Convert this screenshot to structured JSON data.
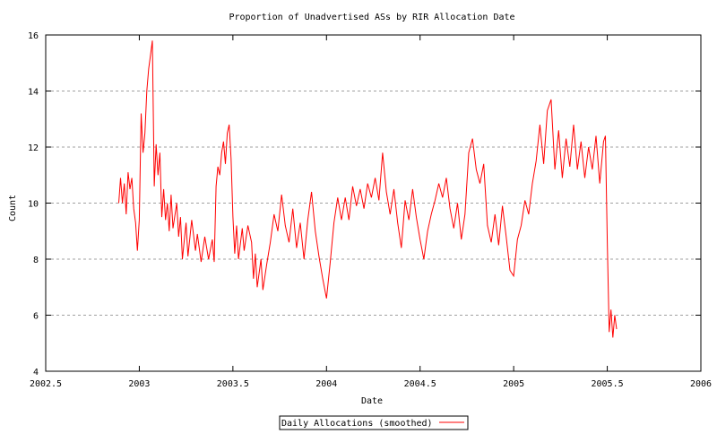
{
  "chart_data": {
    "type": "line",
    "title": "Proportion of Unadvertised ASs by RIR Allocation Date",
    "xlabel": "Date",
    "ylabel": "Count",
    "xlim": [
      2002.5,
      2006
    ],
    "ylim": [
      4,
      16
    ],
    "x_ticks": [
      "2002.5",
      "2003",
      "2003.5",
      "2004",
      "2004.5",
      "2005",
      "2005.5",
      "2006"
    ],
    "y_ticks": [
      "4",
      "6",
      "8",
      "10",
      "12",
      "14",
      "16"
    ],
    "grid": "horizontal dotted",
    "legend_position": "bottom-center",
    "series": [
      {
        "name": "Daily Allocations (smoothed)",
        "color": "#ff0000",
        "points": [
          [
            2002.89,
            10.0
          ],
          [
            2002.9,
            10.9
          ],
          [
            2002.91,
            10.0
          ],
          [
            2002.92,
            10.7
          ],
          [
            2002.93,
            9.6
          ],
          [
            2002.94,
            11.1
          ],
          [
            2002.95,
            10.5
          ],
          [
            2002.96,
            10.9
          ],
          [
            2002.97,
            9.8
          ],
          [
            2002.98,
            9.3
          ],
          [
            2002.99,
            8.3
          ],
          [
            2003.0,
            9.4
          ],
          [
            2003.01,
            13.2
          ],
          [
            2003.02,
            11.8
          ],
          [
            2003.03,
            12.5
          ],
          [
            2003.04,
            14.0
          ],
          [
            2003.05,
            14.8
          ],
          [
            2003.06,
            15.3
          ],
          [
            2003.07,
            15.8
          ],
          [
            2003.08,
            10.6
          ],
          [
            2003.09,
            12.1
          ],
          [
            2003.1,
            11.0
          ],
          [
            2003.11,
            11.8
          ],
          [
            2003.12,
            9.5
          ],
          [
            2003.13,
            10.5
          ],
          [
            2003.14,
            9.4
          ],
          [
            2003.15,
            10.0
          ],
          [
            2003.16,
            9.0
          ],
          [
            2003.17,
            10.3
          ],
          [
            2003.18,
            9.1
          ],
          [
            2003.2,
            10.0
          ],
          [
            2003.21,
            8.8
          ],
          [
            2003.22,
            9.5
          ],
          [
            2003.23,
            8.0
          ],
          [
            2003.25,
            9.3
          ],
          [
            2003.26,
            8.1
          ],
          [
            2003.28,
            9.4
          ],
          [
            2003.3,
            8.3
          ],
          [
            2003.31,
            8.9
          ],
          [
            2003.33,
            7.9
          ],
          [
            2003.35,
            8.8
          ],
          [
            2003.37,
            8.0
          ],
          [
            2003.39,
            8.7
          ],
          [
            2003.4,
            7.9
          ],
          [
            2003.41,
            10.6
          ],
          [
            2003.42,
            11.3
          ],
          [
            2003.43,
            11.0
          ],
          [
            2003.44,
            11.8
          ],
          [
            2003.45,
            12.2
          ],
          [
            2003.46,
            11.4
          ],
          [
            2003.47,
            12.5
          ],
          [
            2003.48,
            12.8
          ],
          [
            2003.49,
            11.6
          ],
          [
            2003.5,
            9.5
          ],
          [
            2003.51,
            8.2
          ],
          [
            2003.52,
            9.2
          ],
          [
            2003.53,
            8.0
          ],
          [
            2003.55,
            9.1
          ],
          [
            2003.56,
            8.3
          ],
          [
            2003.58,
            9.2
          ],
          [
            2003.6,
            8.6
          ],
          [
            2003.61,
            7.3
          ],
          [
            2003.62,
            8.2
          ],
          [
            2003.63,
            7.0
          ],
          [
            2003.65,
            8.0
          ],
          [
            2003.66,
            6.9
          ],
          [
            2003.68,
            7.8
          ],
          [
            2003.7,
            8.6
          ],
          [
            2003.72,
            9.6
          ],
          [
            2003.74,
            9.0
          ],
          [
            2003.76,
            10.3
          ],
          [
            2003.78,
            9.2
          ],
          [
            2003.8,
            8.6
          ],
          [
            2003.82,
            9.8
          ],
          [
            2003.84,
            8.4
          ],
          [
            2003.86,
            9.3
          ],
          [
            2003.88,
            8.0
          ],
          [
            2003.9,
            9.4
          ],
          [
            2003.92,
            10.4
          ],
          [
            2003.94,
            9.0
          ],
          [
            2003.96,
            8.1
          ],
          [
            2003.98,
            7.3
          ],
          [
            2004.0,
            6.6
          ],
          [
            2004.02,
            7.9
          ],
          [
            2004.04,
            9.3
          ],
          [
            2004.06,
            10.2
          ],
          [
            2004.08,
            9.4
          ],
          [
            2004.1,
            10.2
          ],
          [
            2004.12,
            9.4
          ],
          [
            2004.14,
            10.6
          ],
          [
            2004.16,
            9.9
          ],
          [
            2004.18,
            10.5
          ],
          [
            2004.2,
            9.8
          ],
          [
            2004.22,
            10.7
          ],
          [
            2004.24,
            10.2
          ],
          [
            2004.26,
            10.9
          ],
          [
            2004.28,
            10.1
          ],
          [
            2004.3,
            11.8
          ],
          [
            2004.32,
            10.4
          ],
          [
            2004.34,
            9.6
          ],
          [
            2004.36,
            10.5
          ],
          [
            2004.38,
            9.3
          ],
          [
            2004.4,
            8.4
          ],
          [
            2004.42,
            10.1
          ],
          [
            2004.44,
            9.4
          ],
          [
            2004.46,
            10.5
          ],
          [
            2004.48,
            9.5
          ],
          [
            2004.5,
            8.7
          ],
          [
            2004.52,
            8.0
          ],
          [
            2004.54,
            9.0
          ],
          [
            2004.56,
            9.6
          ],
          [
            2004.58,
            10.1
          ],
          [
            2004.6,
            10.7
          ],
          [
            2004.62,
            10.2
          ],
          [
            2004.64,
            10.9
          ],
          [
            2004.66,
            9.8
          ],
          [
            2004.68,
            9.1
          ],
          [
            2004.7,
            10.0
          ],
          [
            2004.72,
            8.7
          ],
          [
            2004.74,
            9.6
          ],
          [
            2004.76,
            11.8
          ],
          [
            2004.78,
            12.3
          ],
          [
            2004.8,
            11.2
          ],
          [
            2004.82,
            10.7
          ],
          [
            2004.84,
            11.4
          ],
          [
            2004.86,
            9.2
          ],
          [
            2004.88,
            8.6
          ],
          [
            2004.9,
            9.6
          ],
          [
            2004.92,
            8.5
          ],
          [
            2004.94,
            9.9
          ],
          [
            2004.96,
            8.8
          ],
          [
            2004.98,
            7.6
          ],
          [
            2005.0,
            7.4
          ],
          [
            2005.02,
            8.7
          ],
          [
            2005.04,
            9.2
          ],
          [
            2005.06,
            10.1
          ],
          [
            2005.08,
            9.6
          ],
          [
            2005.1,
            10.7
          ],
          [
            2005.12,
            11.5
          ],
          [
            2005.14,
            12.8
          ],
          [
            2005.16,
            11.4
          ],
          [
            2005.18,
            13.3
          ],
          [
            2005.2,
            13.7
          ],
          [
            2005.22,
            11.2
          ],
          [
            2005.24,
            12.6
          ],
          [
            2005.26,
            10.9
          ],
          [
            2005.28,
            12.3
          ],
          [
            2005.3,
            11.3
          ],
          [
            2005.32,
            12.8
          ],
          [
            2005.34,
            11.2
          ],
          [
            2005.36,
            12.2
          ],
          [
            2005.38,
            10.9
          ],
          [
            2005.4,
            12.0
          ],
          [
            2005.42,
            11.2
          ],
          [
            2005.44,
            12.4
          ],
          [
            2005.46,
            10.7
          ],
          [
            2005.48,
            12.2
          ],
          [
            2005.49,
            12.4
          ],
          [
            2005.5,
            8.6
          ],
          [
            2005.51,
            5.4
          ],
          [
            2005.52,
            6.2
          ],
          [
            2005.53,
            5.2
          ],
          [
            2005.54,
            6.0
          ],
          [
            2005.55,
            5.5
          ]
        ]
      }
    ]
  }
}
